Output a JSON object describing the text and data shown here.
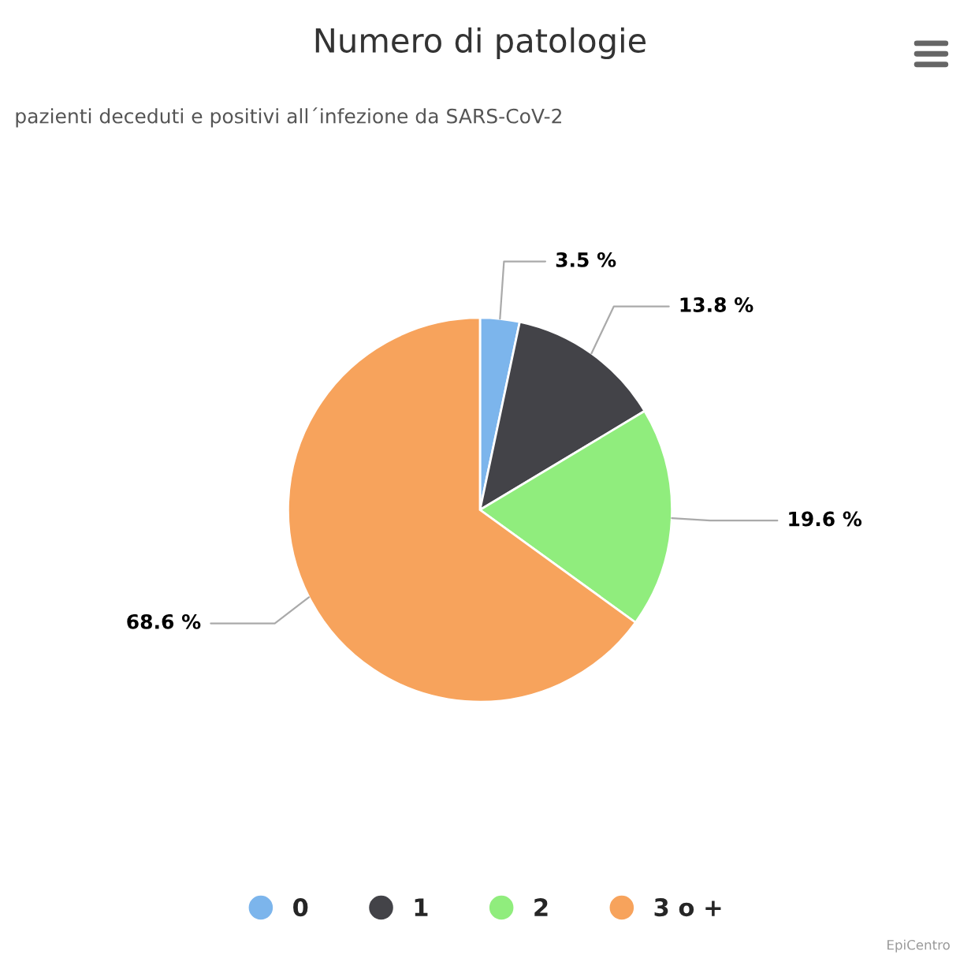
{
  "chart_data": {
    "type": "pie",
    "title": "Numero di patologie",
    "subtitle": "pazienti deceduti e positivi all´infezione da SARS-CoV-2",
    "categories": [
      "0",
      "1",
      "2",
      "3 o +"
    ],
    "values": [
      3.5,
      13.8,
      19.6,
      68.6
    ],
    "colors": [
      "#7cb5ec",
      "#434348",
      "#90ed7d",
      "#f7a35c"
    ],
    "value_labels": [
      "3.5 %",
      "13.8 %",
      "19.6 %",
      "68.6 %"
    ],
    "legend": "bottom",
    "annotations": [
      "EpiCentro"
    ]
  }
}
